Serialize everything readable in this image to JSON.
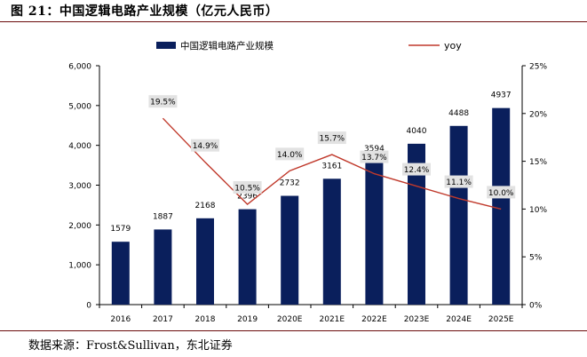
{
  "figure": {
    "title": "图 21：中国逻辑电路产业规模（亿元人民币）",
    "source": "数据来源：Frost&Sullivan，东北证券"
  },
  "colors": {
    "bar": "#0a1f5c",
    "line": "#c0392b",
    "label_box": "#e2e2e2",
    "rule": "#6b0b0b"
  },
  "chart_data": {
    "type": "bar",
    "title": "中国逻辑电路产业规模（亿元人民币）",
    "categories": [
      "2016",
      "2017",
      "2018",
      "2019",
      "2020E",
      "2021E",
      "2022E",
      "2023E",
      "2024E",
      "2025E"
    ],
    "series": [
      {
        "name": "中国逻辑电路产业规模",
        "type": "bar",
        "axis": "left",
        "values": [
          1579,
          1887,
          2168,
          2396,
          2732,
          3161,
          3594,
          4040,
          4488,
          4937
        ],
        "labels": [
          "1579",
          "1887",
          "2168",
          "2396",
          "2732",
          "3161",
          "3594",
          "4040",
          "4488",
          "4937"
        ]
      },
      {
        "name": "yoy",
        "type": "line",
        "axis": "right",
        "values": [
          null,
          19.5,
          14.9,
          10.5,
          14.0,
          15.7,
          13.7,
          12.4,
          11.1,
          10.0
        ],
        "labels": [
          "",
          "19.5%",
          "14.9%",
          "10.5%",
          "14.0%",
          "15.7%",
          "13.7%",
          "12.4%",
          "11.1%",
          "10.0%"
        ]
      }
    ],
    "y_left": {
      "min": 0,
      "max": 6000,
      "ticks": [
        0,
        1000,
        2000,
        3000,
        4000,
        5000,
        6000
      ],
      "tick_labels": [
        "0",
        "1,000",
        "2,000",
        "3,000",
        "4,000",
        "5,000",
        "6,000"
      ]
    },
    "y_right": {
      "min": 0,
      "max": 25,
      "ticks": [
        0,
        5,
        10,
        15,
        20,
        25
      ],
      "tick_labels": [
        "0%",
        "5%",
        "10%",
        "15%",
        "20%",
        "25%"
      ]
    },
    "legend": {
      "position": "top",
      "bar_label": "中国逻辑电路产业规模",
      "line_label": "yoy"
    },
    "grid": false
  }
}
